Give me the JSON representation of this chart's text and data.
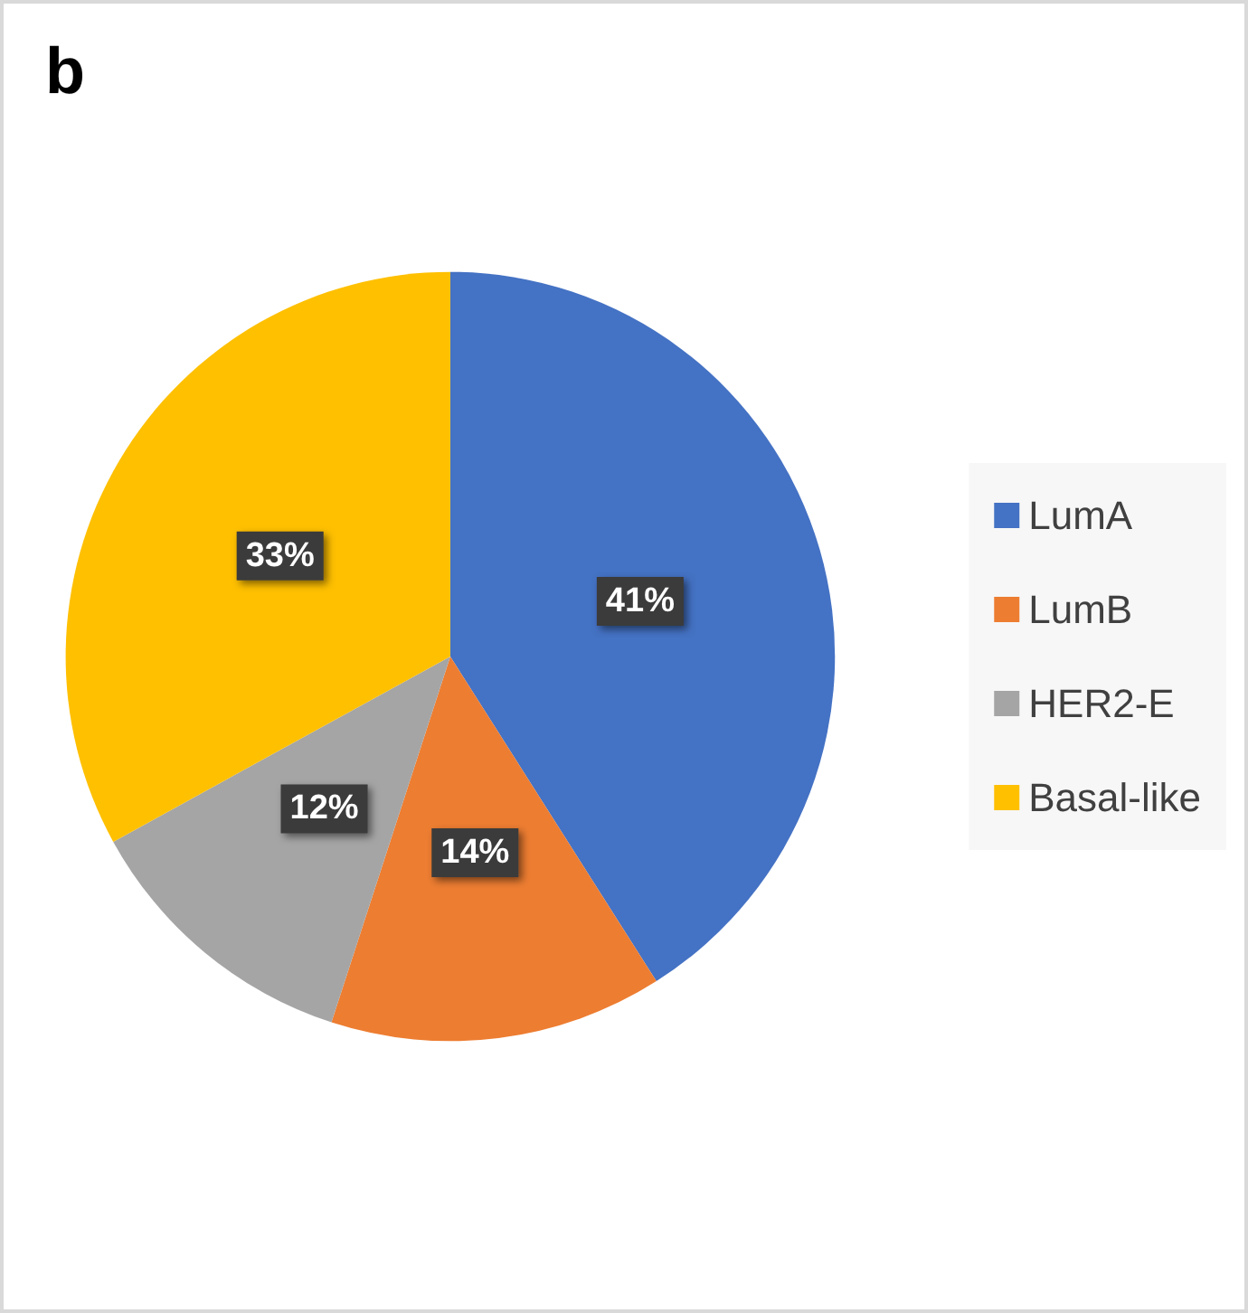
{
  "chart_data": {
    "type": "pie",
    "title": "b",
    "categories": [
      "LumA",
      "LumB",
      "HER2-E",
      "Basal-like"
    ],
    "values": [
      41,
      14,
      12,
      33
    ],
    "colors": [
      "#4472c4",
      "#ed7d31",
      "#a5a5a5",
      "#ffc000"
    ],
    "value_labels": [
      "41%",
      "14%",
      "12%",
      "33%"
    ],
    "legend": "right"
  }
}
